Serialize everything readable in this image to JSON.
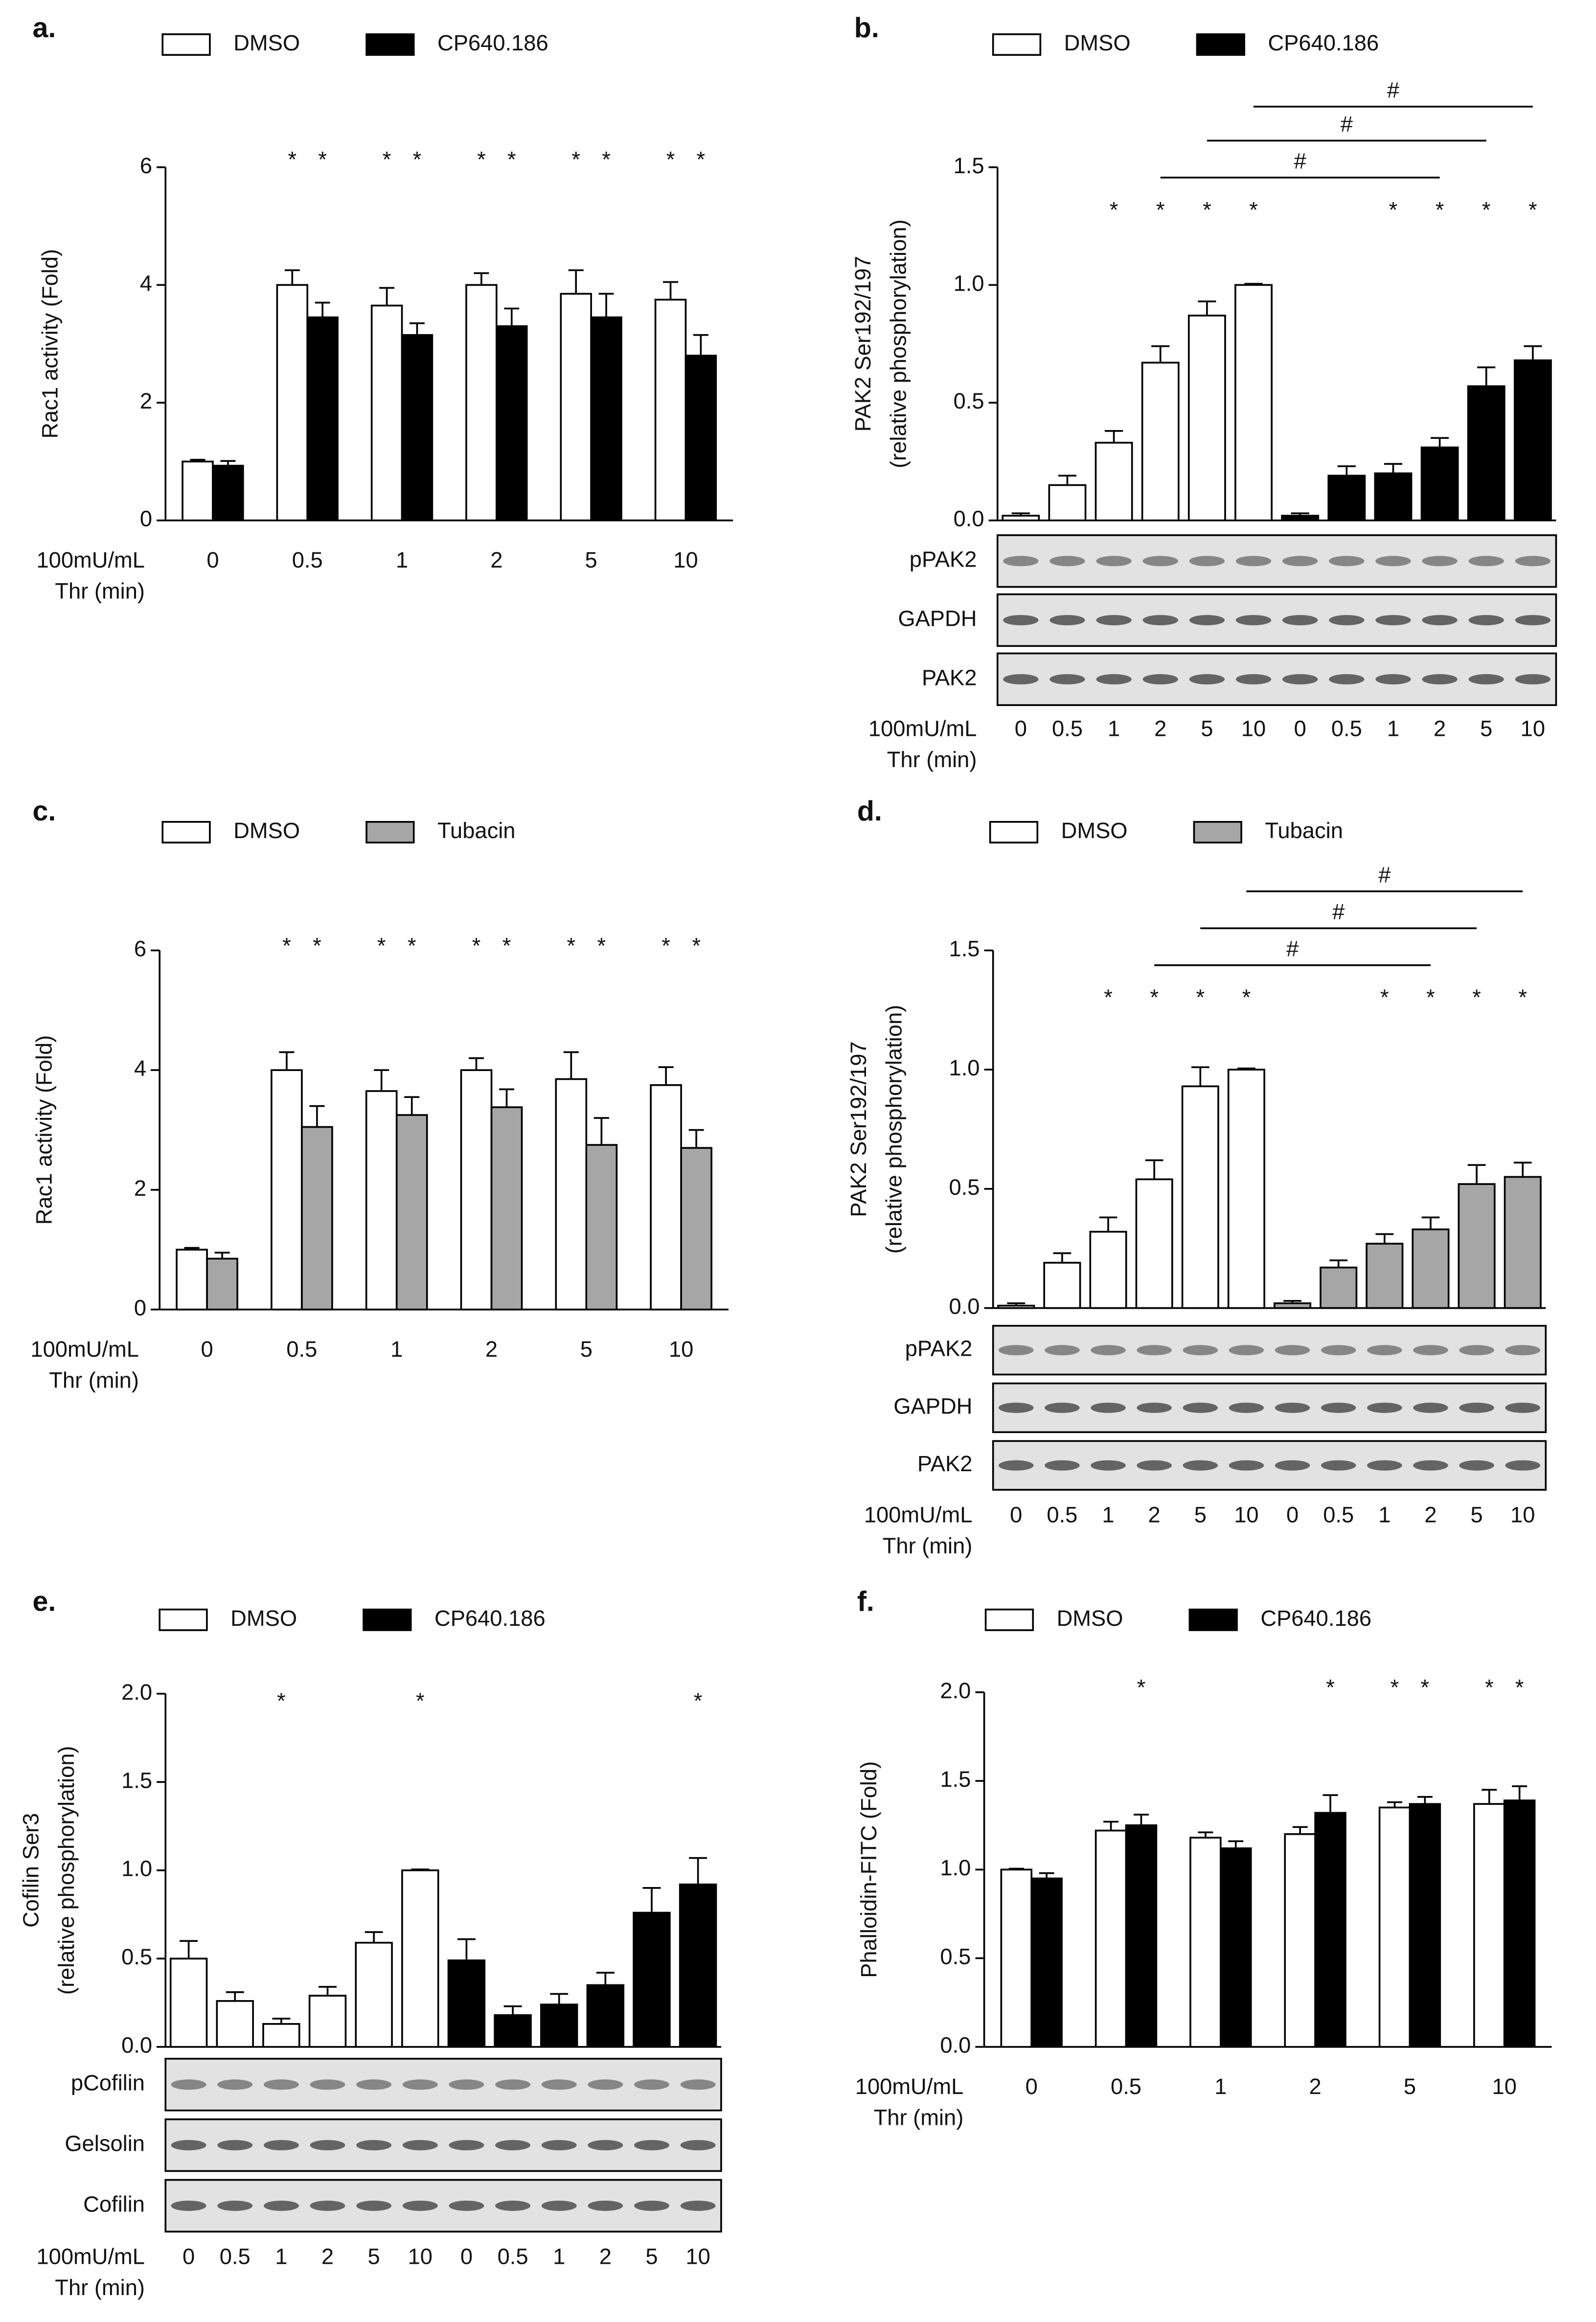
{
  "chart_data": [
    {
      "type": "bar",
      "panel": "a.",
      "ylabel": [
        "Rac1 activity (Fold)"
      ],
      "xlabel": [
        "100mU/mL",
        "Thr (min)"
      ],
      "categories": [
        "0",
        "0.5",
        "1",
        "2",
        "5",
        "10"
      ],
      "series": [
        {
          "name": "DMSO",
          "color": "#ffffff",
          "values": [
            1,
            4.0,
            3.65,
            4.0,
            3.85,
            3.75
          ],
          "errors": [
            0.03,
            0.25,
            0.3,
            0.2,
            0.4,
            0.3
          ],
          "stars": [
            null,
            "*",
            "*",
            "*",
            "*",
            "*"
          ]
        },
        {
          "name": "CP640.186",
          "color": "#000000",
          "values": [
            0.93,
            3.45,
            3.15,
            3.3,
            3.45,
            2.8
          ],
          "errors": [
            0.08,
            0.25,
            0.2,
            0.3,
            0.4,
            0.35
          ],
          "stars": [
            null,
            "*",
            "*",
            "*",
            "*",
            "*"
          ]
        }
      ],
      "ylim": [
        0,
        6
      ],
      "yticks": [
        0,
        2,
        4,
        6
      ]
    },
    {
      "type": "bar",
      "panel": "b.",
      "ylabel": [
        "PAK2 Ser192/197",
        "(relative phosphorylation)"
      ],
      "xlabel": [
        "100mU/mL",
        "Thr (min)"
      ],
      "categories": [
        "0",
        "0.5",
        "1",
        "2",
        "5",
        "10",
        "0",
        "0.5",
        "1",
        "2",
        "5",
        "10"
      ],
      "series": [
        {
          "name": "DMSO",
          "color": "#ffffff",
          "values": [
            0.02,
            0.15,
            0.33,
            0.67,
            0.87,
            1.0,
            null,
            null,
            null,
            null,
            null,
            null
          ],
          "errors": [
            0.01,
            0.04,
            0.05,
            0.07,
            0.06,
            0.005,
            null,
            null,
            null,
            null,
            null,
            null
          ],
          "stars": [
            null,
            null,
            "*",
            "*",
            "*",
            "*",
            null,
            null,
            null,
            null,
            null,
            null
          ]
        },
        {
          "name": "CP640.186",
          "color": "#000000",
          "values": [
            null,
            null,
            null,
            null,
            null,
            null,
            0.02,
            0.19,
            0.2,
            0.31,
            0.57,
            0.68
          ],
          "errors": [
            null,
            null,
            null,
            null,
            null,
            null,
            0.01,
            0.04,
            0.04,
            0.04,
            0.08,
            0.06
          ],
          "stars": [
            null,
            null,
            null,
            null,
            null,
            null,
            null,
            null,
            "*",
            "*",
            "*",
            "*"
          ]
        }
      ],
      "brackets": [
        {
          "from": 3,
          "to": 9,
          "label": "#"
        },
        {
          "from": 4,
          "to": 10,
          "label": "#"
        },
        {
          "from": 5,
          "to": 11,
          "label": "#"
        }
      ],
      "blots": [
        "pPAK2",
        "GAPDH",
        "PAK2"
      ],
      "ylim": [
        0,
        1.5
      ],
      "yticks": [
        {
          "value": 0,
          "label": "0.0"
        },
        0.5,
        {
          "value": 1,
          "label": "1.0"
        },
        1.5
      ]
    },
    {
      "type": "bar",
      "panel": "c.",
      "ylabel": [
        "Rac1 activity (Fold)"
      ],
      "xlabel": [
        "100mU/mL",
        "Thr (min)"
      ],
      "categories": [
        "0",
        "0.5",
        "1",
        "2",
        "5",
        "10"
      ],
      "series": [
        {
          "name": "DMSO",
          "color": "#ffffff",
          "values": [
            1,
            4.0,
            3.65,
            4.0,
            3.85,
            3.75
          ],
          "errors": [
            0.03,
            0.3,
            0.35,
            0.2,
            0.45,
            0.3
          ],
          "stars": [
            null,
            "*",
            "*",
            "*",
            "*",
            "*"
          ]
        },
        {
          "name": "Tubacin",
          "color": "#a6a6a6",
          "values": [
            0.85,
            3.05,
            3.25,
            3.38,
            2.75,
            2.7
          ],
          "errors": [
            0.1,
            0.35,
            0.3,
            0.3,
            0.45,
            0.3
          ],
          "stars": [
            null,
            "*",
            "*",
            "*",
            "*",
            "*"
          ]
        }
      ],
      "ylim": [
        0,
        6
      ],
      "yticks": [
        0,
        2,
        4,
        6
      ]
    },
    {
      "type": "bar",
      "panel": "d.",
      "ylabel": [
        "PAK2 Ser192/197",
        "(relative phosphorylation)"
      ],
      "xlabel": [
        "100mU/mL",
        "Thr (min)"
      ],
      "categories": [
        "0",
        "0.5",
        "1",
        "2",
        "5",
        "10",
        "0",
        "0.5",
        "1",
        "2",
        "5",
        "10"
      ],
      "series": [
        {
          "name": "DMSO",
          "color": "#ffffff",
          "values": [
            0.01,
            0.19,
            0.32,
            0.54,
            0.93,
            1.0,
            null,
            null,
            null,
            null,
            null,
            null
          ],
          "errors": [
            0.01,
            0.04,
            0.06,
            0.08,
            0.08,
            0.005,
            null,
            null,
            null,
            null,
            null,
            null
          ],
          "stars": [
            null,
            null,
            "*",
            "*",
            "*",
            "*",
            null,
            null,
            null,
            null,
            null,
            null
          ]
        },
        {
          "name": "Tubacin",
          "color": "#a6a6a6",
          "values": [
            null,
            null,
            null,
            null,
            null,
            null,
            0.02,
            0.17,
            0.27,
            0.33,
            0.52,
            0.55
          ],
          "errors": [
            null,
            null,
            null,
            null,
            null,
            null,
            0.01,
            0.03,
            0.04,
            0.05,
            0.08,
            0.06
          ],
          "stars": [
            null,
            null,
            null,
            null,
            null,
            null,
            null,
            null,
            "*",
            "*",
            "*",
            "*"
          ]
        }
      ],
      "brackets": [
        {
          "from": 3,
          "to": 9,
          "label": "#"
        },
        {
          "from": 4,
          "to": 10,
          "label": "#"
        },
        {
          "from": 5,
          "to": 11,
          "label": "#"
        }
      ],
      "blots": [
        "pPAK2",
        "GAPDH",
        "PAK2"
      ],
      "ylim": [
        0,
        1.5
      ],
      "yticks": [
        {
          "value": 0,
          "label": "0.0"
        },
        0.5,
        {
          "value": 1,
          "label": "1.0"
        },
        1.5
      ]
    },
    {
      "type": "bar",
      "panel": "e.",
      "ylabel": [
        "Cofilin Ser3",
        "(relative phosphorylation)"
      ],
      "xlabel": [
        "100mU/mL",
        "Thr (min)"
      ],
      "categories": [
        "0",
        "0.5",
        "1",
        "2",
        "5",
        "10",
        "0",
        "0.5",
        "1",
        "2",
        "5",
        "10"
      ],
      "series": [
        {
          "name": "DMSO",
          "color": "#ffffff",
          "values": [
            0.5,
            0.26,
            0.13,
            0.29,
            0.59,
            1.0,
            null,
            null,
            null,
            null,
            null,
            null
          ],
          "errors": [
            0.1,
            0.05,
            0.03,
            0.05,
            0.06,
            0.005,
            null,
            null,
            null,
            null,
            null,
            null
          ],
          "stars": [
            null,
            null,
            "*",
            null,
            null,
            "*",
            null,
            null,
            null,
            null,
            null,
            null
          ]
        },
        {
          "name": "CP640.186",
          "color": "#000000",
          "values": [
            null,
            null,
            null,
            null,
            null,
            null,
            0.49,
            0.18,
            0.24,
            0.35,
            0.76,
            0.92
          ],
          "errors": [
            null,
            null,
            null,
            null,
            null,
            null,
            0.12,
            0.05,
            0.06,
            0.07,
            0.14,
            0.15
          ],
          "stars": [
            null,
            null,
            null,
            null,
            null,
            null,
            null,
            null,
            null,
            null,
            null,
            "*"
          ]
        }
      ],
      "blots": [
        "pCofilin",
        "Gelsolin",
        "Cofilin"
      ],
      "ylim": [
        0,
        2
      ],
      "yticks": [
        {
          "value": 0,
          "label": "0.0"
        },
        0.5,
        {
          "value": 1,
          "label": "1.0"
        },
        1.5,
        {
          "value": 2,
          "label": "2.0"
        }
      ]
    },
    {
      "type": "bar",
      "panel": "f.",
      "ylabel": [
        "Phalloidin-FITC (Fold)"
      ],
      "xlabel": [
        "100mU/mL",
        "Thr (min)"
      ],
      "categories": [
        "0",
        "0.5",
        "1",
        "2",
        "5",
        "10"
      ],
      "series": [
        {
          "name": "DMSO",
          "color": "#ffffff",
          "values": [
            1,
            1.22,
            1.18,
            1.2,
            1.35,
            1.37
          ],
          "errors": [
            0.005,
            0.05,
            0.03,
            0.04,
            0.03,
            0.08
          ],
          "stars": [
            null,
            null,
            null,
            null,
            "*",
            "*"
          ]
        },
        {
          "name": "CP640.186",
          "color": "#000000",
          "values": [
            0.95,
            1.25,
            1.12,
            1.32,
            1.37,
            1.39
          ],
          "errors": [
            0.03,
            0.06,
            0.04,
            0.1,
            0.04,
            0.08
          ],
          "stars": [
            null,
            "*",
            null,
            "*",
            "*",
            "*"
          ]
        }
      ],
      "ylim": [
        0,
        2
      ],
      "yticks": [
        {
          "value": 0,
          "label": "0.0"
        },
        0.5,
        {
          "value": 1,
          "label": "1.0"
        },
        1.5,
        {
          "value": 2,
          "label": "2.0"
        }
      ]
    }
  ]
}
